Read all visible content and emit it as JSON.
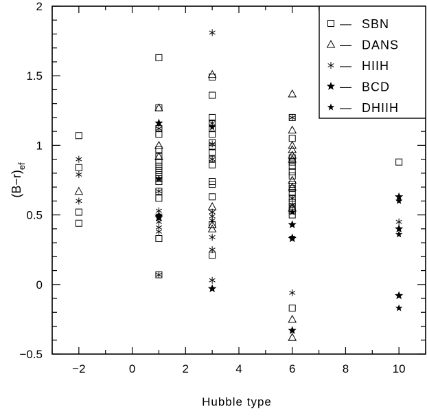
{
  "chart_data": {
    "type": "scatter",
    "title": "",
    "xlabel": "Hubble type",
    "ylabel": "(B−r)",
    "ylabel_sub": "ef",
    "xlim": [
      -3,
      11
    ],
    "ylim": [
      -0.5,
      2
    ],
    "xticks": [
      -2,
      0,
      2,
      4,
      6,
      8,
      10
    ],
    "xtick_labels": [
      "−2",
      "0",
      "2",
      "4",
      "6",
      "8",
      "10"
    ],
    "yticks": [
      -0.5,
      0,
      0.5,
      1,
      1.5,
      2
    ],
    "ytick_labels": [
      "−0.5",
      "0",
      "0.5",
      "1",
      "1.5",
      "2"
    ],
    "grid": false,
    "legend_position": "top-right",
    "legend_dash": "—",
    "series": [
      {
        "name": "SBN",
        "marker": "square",
        "points": [
          [
            -2,
            1.07
          ],
          [
            -2,
            0.84
          ],
          [
            -2,
            0.52
          ],
          [
            -2,
            0.44
          ],
          [
            1,
            1.63
          ],
          [
            1,
            1.27
          ],
          [
            1,
            1.12
          ],
          [
            1,
            1.08
          ],
          [
            1,
            0.97
          ],
          [
            1,
            0.92
          ],
          [
            1,
            0.88
          ],
          [
            1,
            0.85
          ],
          [
            1,
            0.82
          ],
          [
            1,
            0.79
          ],
          [
            1,
            0.76
          ],
          [
            1,
            0.74
          ],
          [
            1,
            0.67
          ],
          [
            1,
            0.62
          ],
          [
            1,
            0.33
          ],
          [
            1,
            0.07
          ],
          [
            3,
            1.49
          ],
          [
            3,
            1.36
          ],
          [
            3,
            1.2
          ],
          [
            3,
            1.16
          ],
          [
            3,
            1.12
          ],
          [
            3,
            1.08
          ],
          [
            3,
            1.02
          ],
          [
            3,
            0.99
          ],
          [
            3,
            0.95
          ],
          [
            3,
            0.9
          ],
          [
            3,
            0.86
          ],
          [
            3,
            0.74
          ],
          [
            3,
            0.72
          ],
          [
            3,
            0.63
          ],
          [
            3,
            0.43
          ],
          [
            3,
            0.21
          ],
          [
            6,
            1.2
          ],
          [
            6,
            1.05
          ],
          [
            6,
            0.91
          ],
          [
            6,
            0.88
          ],
          [
            6,
            0.85
          ],
          [
            6,
            0.81
          ],
          [
            6,
            0.78
          ],
          [
            6,
            0.72
          ],
          [
            6,
            0.69
          ],
          [
            6,
            0.66
          ],
          [
            6,
            0.62
          ],
          [
            6,
            0.59
          ],
          [
            6,
            0.56
          ],
          [
            6,
            0.53
          ],
          [
            6,
            0.5
          ],
          [
            6,
            -0.17
          ],
          [
            10,
            0.88
          ]
        ]
      },
      {
        "name": "DANS",
        "marker": "triangle",
        "points": [
          [
            -2,
            0.67
          ],
          [
            1,
            1.27
          ],
          [
            1,
            1.0
          ],
          [
            1,
            0.92
          ],
          [
            3,
            1.51
          ],
          [
            3,
            0.56
          ],
          [
            3,
            0.43
          ],
          [
            3,
            0.4
          ],
          [
            6,
            1.37
          ],
          [
            6,
            1.11
          ],
          [
            6,
            1.0
          ],
          [
            6,
            0.97
          ],
          [
            6,
            0.93
          ],
          [
            6,
            0.9
          ],
          [
            6,
            0.75
          ],
          [
            6,
            0.7
          ],
          [
            6,
            0.55
          ],
          [
            6,
            -0.25
          ],
          [
            6,
            -0.38
          ]
        ]
      },
      {
        "name": "HIIH",
        "marker": "asterisk",
        "points": [
          [
            -2,
            0.9
          ],
          [
            -2,
            0.79
          ],
          [
            -2,
            0.6
          ],
          [
            1,
            1.12
          ],
          [
            1,
            0.76
          ],
          [
            1,
            0.67
          ],
          [
            1,
            0.53
          ],
          [
            1,
            0.45
          ],
          [
            1,
            0.41
          ],
          [
            1,
            0.38
          ],
          [
            1,
            0.07
          ],
          [
            3,
            1.81
          ],
          [
            3,
            1.16
          ],
          [
            3,
            1.01
          ],
          [
            3,
            0.9
          ],
          [
            3,
            0.52
          ],
          [
            3,
            0.49
          ],
          [
            3,
            0.46
          ],
          [
            3,
            0.34
          ],
          [
            3,
            0.25
          ],
          [
            3,
            0.03
          ],
          [
            6,
            1.2
          ],
          [
            6,
            0.62
          ],
          [
            6,
            0.57
          ],
          [
            6,
            -0.06
          ],
          [
            10,
            0.45
          ]
        ]
      },
      {
        "name": "BCD",
        "marker": "star",
        "points": [
          [
            1,
            1.16
          ],
          [
            1,
            0.49
          ],
          [
            1,
            0.48
          ],
          [
            3,
            -0.03
          ],
          [
            6,
            0.43
          ],
          [
            6,
            0.33
          ],
          [
            6,
            -0.33
          ],
          [
            10,
            0.63
          ],
          [
            10,
            0.4
          ],
          [
            10,
            -0.08
          ]
        ]
      },
      {
        "name": "DHIIH",
        "marker": "star-small",
        "points": [
          [
            1,
            0.76
          ],
          [
            1,
            0.5
          ],
          [
            3,
            1.13
          ],
          [
            6,
            0.52
          ],
          [
            6,
            0.34
          ],
          [
            10,
            0.6
          ],
          [
            10,
            0.36
          ],
          [
            10,
            -0.17
          ]
        ]
      }
    ]
  }
}
